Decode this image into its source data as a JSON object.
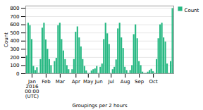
{
  "chart_data": {
    "type": "bar",
    "xlabel": "Groupings per 2 hours",
    "ylabel": "Count",
    "categories": [
      null,
      null,
      null,
      "Jan\n2016\n00:00\n(UTC)",
      null,
      null,
      null,
      null,
      null,
      null,
      null,
      "Feb",
      null,
      null,
      null,
      null,
      null,
      null,
      null,
      "Mar",
      null,
      null,
      null,
      null,
      null,
      null,
      null,
      null,
      "Apr",
      null,
      null,
      null,
      null,
      null,
      null,
      "May",
      null,
      null,
      null,
      null,
      null,
      "Jun",
      null,
      null,
      null,
      null,
      null,
      null,
      "Jul",
      null,
      null,
      null,
      null,
      null,
      null,
      null,
      "Aug",
      null,
      null,
      null,
      null,
      null,
      null,
      null,
      "Sep",
      null,
      null,
      null,
      null,
      null,
      null,
      null,
      "Oct",
      null,
      null,
      null,
      null,
      null,
      null,
      null,
      null,
      null,
      null,
      null
    ],
    "series": [
      {
        "name": "Count",
        "color": "#26b882",
        "values": [
          220,
          620,
          590,
          420,
          90,
          40,
          75,
          5,
          175,
          560,
          620,
          415,
          300,
          175,
          100,
          5,
          150,
          190,
          590,
          620,
          420,
          280,
          175,
          100,
          50,
          5,
          50,
          175,
          510,
          575,
          440,
          330,
          175,
          90,
          35,
          5,
          5,
          35,
          50,
          60,
          90,
          5,
          80,
          120,
          420,
          620,
          490,
          360,
          5,
          50,
          80,
          170,
          550,
          620,
          440,
          310,
          80,
          40,
          5,
          40,
          100,
          480,
          600,
          430,
          150,
          100,
          20,
          5,
          5,
          20,
          40,
          55,
          25,
          5,
          175,
          430,
          600,
          620,
          440,
          390,
          120,
          5,
          150,
          800
        ]
      }
    ],
    "ylim": [
      0,
      830
    ],
    "yticks": [
      0,
      100,
      200,
      300,
      400,
      500,
      600,
      700,
      800
    ],
    "grid": true,
    "legend": "upper right"
  }
}
